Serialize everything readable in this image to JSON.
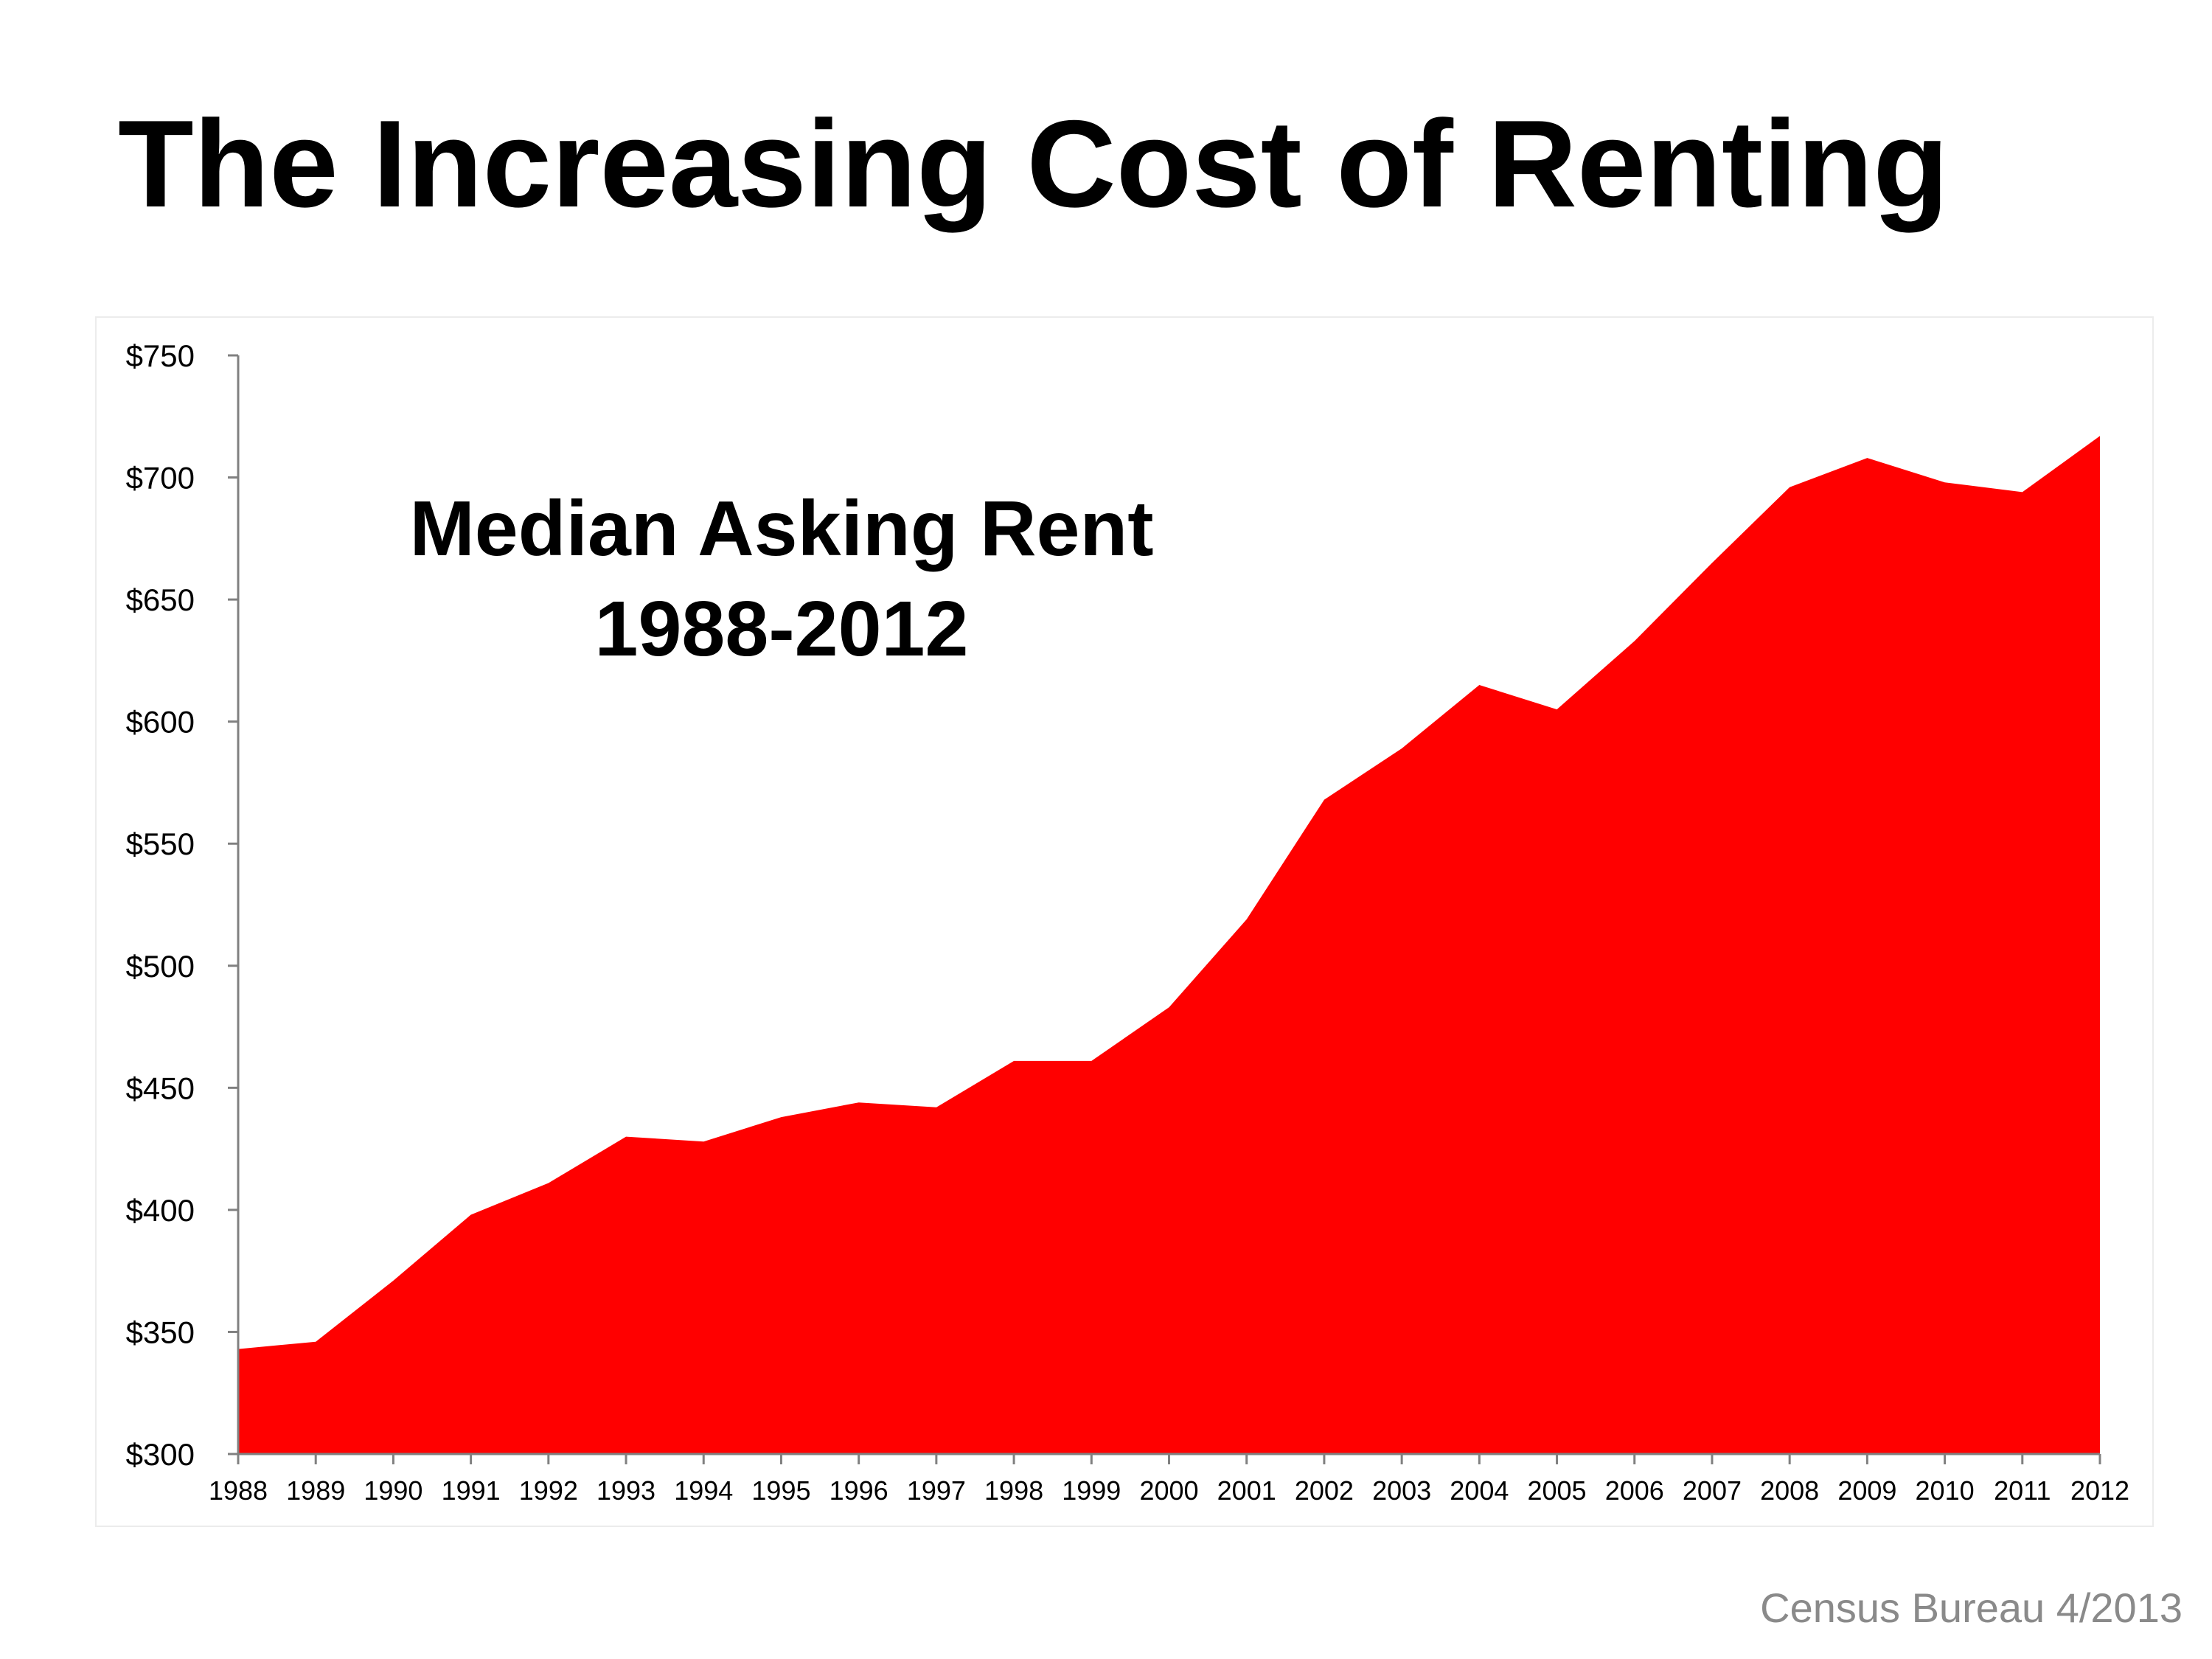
{
  "slide": {
    "title": "The Increasing Cost of Renting",
    "source": "Census Bureau 4/2013"
  },
  "chart_data": {
    "type": "area",
    "title_line1": "Median Asking Rent",
    "title_line2": "1988-2012",
    "xlabel": "",
    "ylabel": "",
    "x": [
      "1988",
      "1989",
      "1990",
      "1991",
      "1992",
      "1993",
      "1994",
      "1995",
      "1996",
      "1997",
      "1998",
      "1999",
      "2000",
      "2001",
      "2002",
      "2003",
      "2004",
      "2005",
      "2006",
      "2007",
      "2008",
      "2009",
      "2010",
      "2011",
      "2012"
    ],
    "series": [
      {
        "values": [
          343,
          346,
          371,
          398,
          411,
          430,
          428,
          438,
          444,
          442,
          461,
          461,
          483,
          519,
          568,
          589,
          615,
          605,
          633,
          665,
          696,
          708,
          698,
          694,
          717
        ],
        "color": "#ff0000"
      }
    ],
    "ylim": [
      300,
      750
    ],
    "yticks": [
      300,
      350,
      400,
      450,
      500,
      550,
      600,
      650,
      700,
      750
    ],
    "ytick_labels": [
      "$300",
      "$350",
      "$400",
      "$450",
      "$500",
      "$550",
      "$600",
      "$650",
      "$700",
      "$750"
    ],
    "grid": false,
    "legend": "none"
  }
}
